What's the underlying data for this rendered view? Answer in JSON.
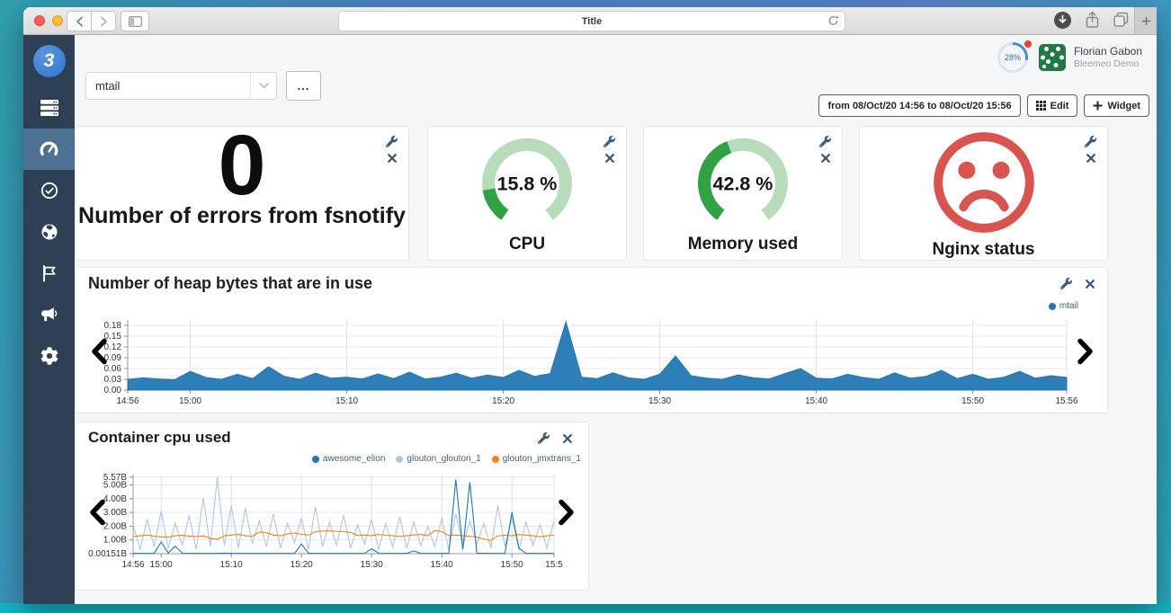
{
  "browser": {
    "address_bar_title": "Title"
  },
  "sidebar": {
    "items": [
      {
        "id": "servers",
        "icon": "servers-icon",
        "active": false
      },
      {
        "id": "dashboard",
        "icon": "dashboard-gauge-icon",
        "active": true
      },
      {
        "id": "checks",
        "icon": "check-circle-icon",
        "active": false
      },
      {
        "id": "globe",
        "icon": "globe-icon",
        "active": false
      },
      {
        "id": "flags",
        "icon": "flag-icon",
        "active": false
      },
      {
        "id": "announcements",
        "icon": "megaphone-icon",
        "active": false
      },
      {
        "id": "settings",
        "icon": "gear-icon",
        "active": false
      }
    ]
  },
  "header": {
    "usage_gauge": {
      "value": "28%",
      "percent": 28,
      "color": "#4a8fd4",
      "track_color": "#d5e5f6",
      "alert_dot_color": "#ff3b30"
    },
    "user": {
      "name": "Florian Gabon",
      "org": "Bleemeo Demo"
    }
  },
  "toolbar": {
    "dashboard_select_value": "mtail",
    "more_button_label": "...",
    "date_range_label": "from 08/Oct/20 14:56 to 08/Oct/20 15:56",
    "edit_label": "Edit",
    "add_widget_label": "Widget"
  },
  "widgets": [
    {
      "type": "number",
      "title": "Number of errors from fsnotify",
      "value": "0"
    },
    {
      "type": "gauge",
      "title": "CPU",
      "value": "15.8 %",
      "percent": 15.8
    },
    {
      "type": "gauge",
      "title": "Memory used",
      "value": "42.8 %",
      "percent": 42.8
    },
    {
      "type": "status",
      "title": "Nginx status",
      "status": "critical"
    }
  ],
  "colors": {
    "gauge_fill": "#2fa344",
    "gauge_track": "#b7dcb9",
    "status_red": "#d9534f",
    "icon_slate": "#3d5a73",
    "sidebar_bg": "#2e4154",
    "sidebar_active": "#4f7294"
  },
  "chart_data": [
    {
      "type": "area",
      "title": "Number of heap bytes that are in use",
      "legend": [
        {
          "name": "mtail",
          "color": "#1f77b4"
        }
      ],
      "x_range_minutes": [
        896,
        956
      ],
      "y_range": [
        0,
        0.195
      ],
      "grid": true,
      "legend_position": "top-right",
      "x_ticks": [
        {
          "label": "14:56",
          "t": 896
        },
        {
          "label": "15:00",
          "t": 900
        },
        {
          "label": "15:10",
          "t": 910
        },
        {
          "label": "15:20",
          "t": 920
        },
        {
          "label": "15:30",
          "t": 930
        },
        {
          "label": "15:40",
          "t": 940
        },
        {
          "label": "15:50",
          "t": 950
        },
        {
          "label": "15:56",
          "t": 956
        }
      ],
      "y_ticks": [
        {
          "label": "0.00",
          "v": 0
        },
        {
          "label": "0.03",
          "v": 0.03
        },
        {
          "label": "0.06",
          "v": 0.06
        },
        {
          "label": "0.09",
          "v": 0.09
        },
        {
          "label": "0.12",
          "v": 0.12
        },
        {
          "label": "0.15",
          "v": 0.15
        },
        {
          "label": "0.18",
          "v": 0.18
        }
      ],
      "series": [
        {
          "name": "mtail",
          "type": "area",
          "color": "#1f77b4",
          "fill": "#2e7eb8",
          "values": [
            0.03,
            0.034,
            0.031,
            0.029,
            0.052,
            0.035,
            0.03,
            0.044,
            0.032,
            0.065,
            0.038,
            0.03,
            0.047,
            0.033,
            0.036,
            0.031,
            0.045,
            0.032,
            0.05,
            0.031,
            0.036,
            0.047,
            0.033,
            0.042,
            0.035,
            0.055,
            0.038,
            0.046,
            0.19,
            0.036,
            0.032,
            0.048,
            0.034,
            0.03,
            0.044,
            0.095,
            0.04,
            0.033,
            0.03,
            0.042,
            0.034,
            0.031,
            0.046,
            0.06,
            0.033,
            0.031,
            0.044,
            0.035,
            0.03,
            0.048,
            0.033,
            0.038,
            0.055,
            0.032,
            0.044,
            0.03,
            0.036,
            0.052,
            0.033,
            0.04,
            0.035
          ]
        }
      ]
    },
    {
      "type": "line",
      "title": "Container cpu used",
      "legend": [
        {
          "name": "awesome_elion",
          "color": "#1f77b4"
        },
        {
          "name": "glouton_glouton_1",
          "color": "#aec7e8"
        },
        {
          "name": "glouton_jmxtrans_1",
          "color": "#ff7f0e"
        }
      ],
      "x_range_minutes": [
        896,
        956
      ],
      "y_range": [
        0,
        5.75
      ],
      "grid": true,
      "legend_position": "top-right",
      "draw_order": [
        1,
        2,
        0
      ],
      "x_ticks": [
        {
          "label": "14:56",
          "t": 896
        },
        {
          "label": "15:00",
          "t": 900
        },
        {
          "label": "15:10",
          "t": 910
        },
        {
          "label": "15:20",
          "t": 920
        },
        {
          "label": "15:30",
          "t": 930
        },
        {
          "label": "15:40",
          "t": 940
        },
        {
          "label": "15:50",
          "t": 950
        },
        {
          "label": "15:5",
          "t": 956
        }
      ],
      "y_ticks": [
        {
          "label": "0.00151B",
          "v": 0.00151
        },
        {
          "label": "1.00B",
          "v": 1
        },
        {
          "label": "2.00B",
          "v": 2
        },
        {
          "label": "3.00B",
          "v": 3
        },
        {
          "label": "4.00B",
          "v": 4
        },
        {
          "label": "5.00B",
          "v": 5
        },
        {
          "label": "5.57B",
          "v": 5.57
        }
      ],
      "series": [
        {
          "name": "awesome_elion",
          "type": "line",
          "color": "#1f77b4",
          "values": [
            0.02,
            0.02,
            0.02,
            0.02,
            0.85,
            0.05,
            0.55,
            0.03,
            0.02,
            0.02,
            0.02,
            0.02,
            0.02,
            0.03,
            0.02,
            0.02,
            0.02,
            0.02,
            0.02,
            0.02,
            0.02,
            0.02,
            0.02,
            0.02,
            0.7,
            0.04,
            0.02,
            0.02,
            0.02,
            0.02,
            0.02,
            0.02,
            0.02,
            0.02,
            0.35,
            0.03,
            0.02,
            0.02,
            0.02,
            0.02,
            0.2,
            0.02,
            0.02,
            0.02,
            0.02,
            0.02,
            5.4,
            0.3,
            5.2,
            0.04,
            0.02,
            0.02,
            0.02,
            0.02,
            3.0,
            0.4,
            0.02,
            0.02,
            0.02,
            0.02,
            0.02
          ]
        },
        {
          "name": "glouton_glouton_1",
          "type": "line",
          "color": "#aec7e8",
          "values": [
            2.1,
            0.3,
            2.5,
            0.5,
            3.1,
            0.4,
            2.2,
            0.6,
            2.8,
            0.3,
            4.1,
            0.5,
            5.57,
            0.6,
            3.5,
            0.4,
            3.3,
            0.7,
            2.4,
            0.5,
            2.9,
            0.4,
            2.2,
            0.8,
            2.6,
            0.3,
            3.4,
            0.5,
            2.3,
            0.6,
            2.8,
            0.4,
            2.1,
            0.7,
            2.5,
            0.3,
            2.2,
            0.5,
            2.7,
            0.4,
            2.3,
            0.6,
            2.0,
            0.5,
            2.6,
            0.3,
            2.9,
            0.5,
            2.4,
            0.7,
            2.2,
            0.4,
            3.5,
            0.5,
            2.6,
            0.3,
            2.3,
            0.6,
            2.1,
            0.4,
            2.4
          ]
        },
        {
          "name": "glouton_jmxtrans_1",
          "type": "line",
          "color": "#ff7f0e",
          "values": [
            1.25,
            1.3,
            1.35,
            1.28,
            1.22,
            1.2,
            1.3,
            1.33,
            1.28,
            1.24,
            1.3,
            1.12,
            1.05,
            1.3,
            1.36,
            1.4,
            1.3,
            1.26,
            1.58,
            1.52,
            1.35,
            1.3,
            1.44,
            1.5,
            1.4,
            1.36,
            1.6,
            1.64,
            1.65,
            1.62,
            1.6,
            1.55,
            1.32,
            1.36,
            1.3,
            1.4,
            1.34,
            1.3,
            1.26,
            1.3,
            1.36,
            1.4,
            1.3,
            1.68,
            1.6,
            1.32,
            1.35,
            1.3,
            1.26,
            1.2,
            1.05,
            0.96,
            1.3,
            1.34,
            1.3,
            1.4,
            1.34,
            1.3,
            1.22,
            1.3,
            1.34
          ]
        }
      ]
    }
  ]
}
